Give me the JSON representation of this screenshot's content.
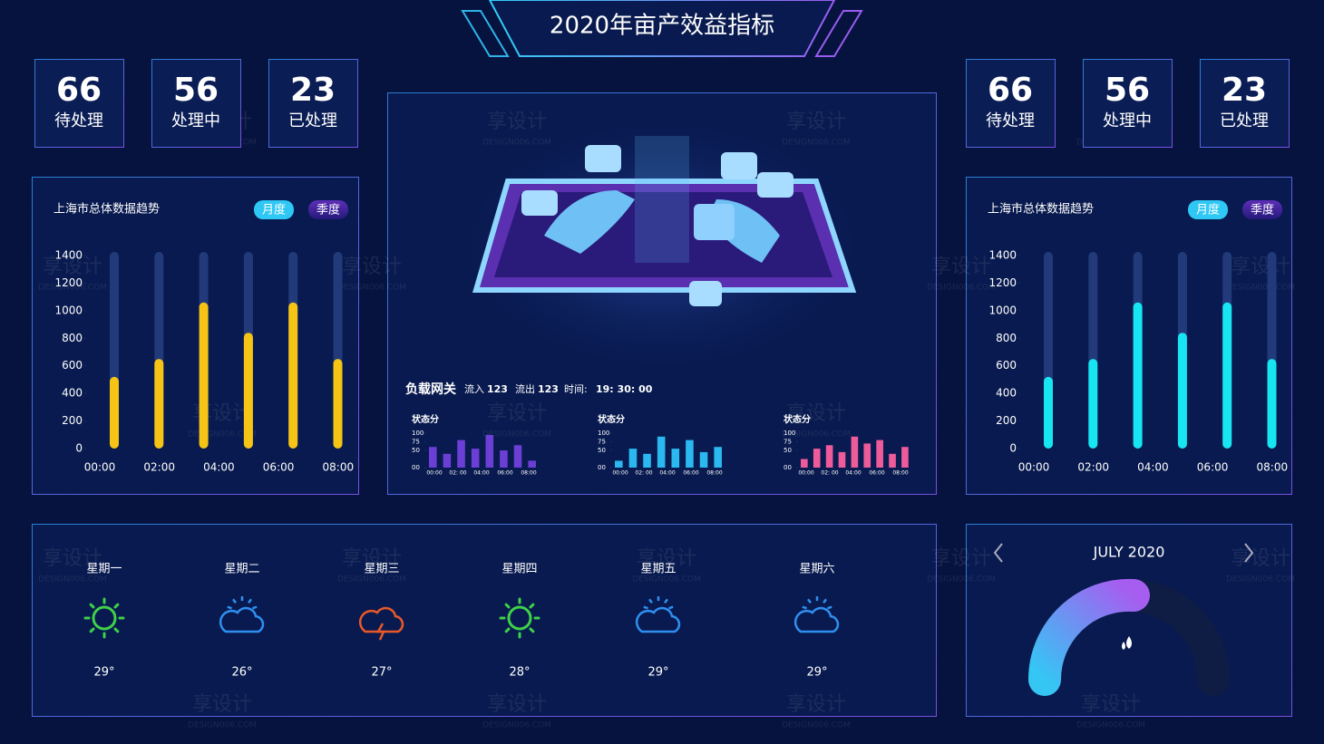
{
  "header": {
    "title": "2020年亩产效益指标"
  },
  "stats_left": [
    {
      "value": 66,
      "label": "待处理"
    },
    {
      "value": 56,
      "label": "处理中"
    },
    {
      "value": 23,
      "label": "已处理"
    }
  ],
  "stats_right": [
    {
      "value": 66,
      "label": "待处理"
    },
    {
      "value": 56,
      "label": "处理中"
    },
    {
      "value": 23,
      "label": "已处理"
    }
  ],
  "chart_data": [
    {
      "type": "bar",
      "title": "上海市总体数据趋势",
      "tabs": [
        "月度",
        "季度"
      ],
      "color": "#f6c415",
      "values": [
        520,
        650,
        1060,
        840,
        1060,
        650
      ],
      "x_labels": [
        "00:00",
        "02:00",
        "04:00",
        "06:00",
        "08:00"
      ],
      "ylim": [
        0,
        1400
      ],
      "yticks": [
        0,
        200,
        400,
        600,
        800,
        1000,
        1200,
        1400
      ]
    },
    {
      "type": "bar",
      "title": "上海市总体数据趋势",
      "tabs": [
        "月度",
        "季度"
      ],
      "color": "#17e6f2",
      "values": [
        520,
        650,
        1060,
        840,
        1060,
        650
      ],
      "x_labels": [
        "00:00",
        "02:00",
        "04:00",
        "06:00",
        "08:00"
      ],
      "ylim": [
        0,
        1400
      ],
      "yticks": [
        0,
        200,
        400,
        600,
        800,
        1000,
        1200,
        1400
      ]
    },
    {
      "type": "mini-bar",
      "title": "状态分",
      "color": "#6b3fd6",
      "values": [
        60,
        40,
        80,
        55,
        95,
        50,
        65,
        20
      ],
      "x_labels": [
        "00:00",
        "02: 00",
        "04:00",
        "06:00",
        "08:00"
      ],
      "ylim": [
        0,
        100
      ],
      "yticks": [
        {
          "value": 0,
          "label": "00"
        },
        50,
        75,
        100
      ]
    },
    {
      "type": "mini-bar",
      "title": "状态分",
      "color": "#2bb8f0",
      "values": [
        20,
        55,
        40,
        90,
        55,
        80,
        45,
        60
      ],
      "x_labels": [
        "00:00",
        "02: 00",
        "04:00",
        "06:00",
        "08:00"
      ],
      "ylim": [
        0,
        100
      ],
      "yticks": [
        {
          "value": 0,
          "label": "00"
        },
        50,
        75,
        100
      ]
    },
    {
      "type": "mini-bar",
      "title": "状态分",
      "color": "#ee5b9a",
      "values": [
        25,
        55,
        65,
        45,
        90,
        70,
        80,
        40,
        60
      ],
      "x_labels": [
        "00:00",
        "02: 00",
        "04:00",
        "06:00",
        "08:00"
      ],
      "ylim": [
        0,
        100
      ],
      "yticks": [
        {
          "value": 0,
          "label": "00"
        },
        50,
        75,
        100
      ]
    }
  ],
  "gateway": {
    "title": "负载网关",
    "in_label": "流入",
    "in_value": "123",
    "out_label": "流出",
    "out_value": "123",
    "time_label": "时间:",
    "time_value": "19: 30: 00"
  },
  "weather": [
    {
      "day": "星期一",
      "temp": "29°"
    },
    {
      "day": "星期二",
      "temp": "26°"
    },
    {
      "day": "星期三",
      "temp": "27°"
    },
    {
      "day": "星期四",
      "temp": "28°"
    },
    {
      "day": "星期五",
      "temp": "29°"
    },
    {
      "day": "星期六",
      "temp": "29°"
    }
  ],
  "calendar": {
    "month": "JULY 2020"
  },
  "watermark": {
    "cn": "享设计",
    "en": "DESIGN006.COM"
  }
}
